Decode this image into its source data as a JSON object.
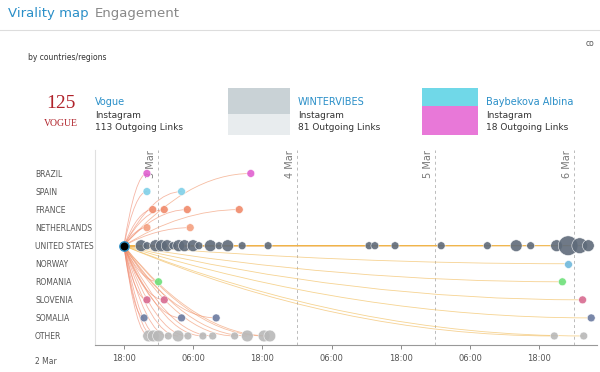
{
  "header": {
    "tabs": [
      "Virality map",
      "Engagement"
    ],
    "subtitle": "by countries/regions",
    "corner_text": "co"
  },
  "cards": [
    {
      "logo": [
        "125",
        "VOGUE"
      ],
      "title": "Vogue",
      "platform": "Instagram",
      "links": "113 Outgoing Links"
    },
    {
      "title": "WINTERVIBES",
      "platform": "Instagram",
      "links": "81 Outgoing Links"
    },
    {
      "title": "Baybekova Albina",
      "platform": "Instagram",
      "links": "18 Outgoing Links"
    }
  ],
  "chart_data": {
    "type": "scatter",
    "categories": [
      "BRAZIL",
      "SPAIN",
      "FRANCE",
      "NETHERLANDS",
      "UNITED STATES",
      "NORWAY",
      "ROMANIA",
      "SLOVENIA",
      "SOMALIA",
      "OTHER"
    ],
    "start_label": "2 Mar",
    "xlim": [
      13,
      100
    ],
    "xticks": [
      {
        "value": 18,
        "label": "18:00"
      },
      {
        "value": 30,
        "label": "06:00"
      },
      {
        "value": 42,
        "label": "18:00"
      },
      {
        "value": 54,
        "label": "06:00"
      },
      {
        "value": 66,
        "label": "18:00"
      },
      {
        "value": 78,
        "label": "06:00"
      },
      {
        "value": 90,
        "label": "18:00"
      }
    ],
    "day_lines": [
      {
        "value": 24,
        "label": "3 Mar"
      },
      {
        "value": 48,
        "label": "4 Mar"
      },
      {
        "value": 72,
        "label": "5 Mar"
      },
      {
        "value": 96,
        "label": "6 Mar"
      }
    ],
    "source": {
      "x": 18,
      "category": "UNITED STATES"
    },
    "series": [
      {
        "name": "BRAZIL",
        "color": "#e060d0",
        "x": [
          22,
          40
        ],
        "sizes": [
          2,
          2
        ]
      },
      {
        "name": "SPAIN",
        "color": "#7fd0e8",
        "x": [
          22,
          28
        ],
        "sizes": [
          2,
          2
        ]
      },
      {
        "name": "FRANCE",
        "color": "#f08a6a",
        "x": [
          23,
          25,
          29,
          38
        ],
        "sizes": [
          2,
          2,
          2,
          2
        ]
      },
      {
        "name": "NETHERLANDS",
        "color": "#f4a080",
        "x": [
          22,
          29.5
        ],
        "sizes": [
          2,
          2
        ]
      },
      {
        "name": "UNITED STATES",
        "color": "#5f6b7a",
        "x": [
          21,
          22,
          23.5,
          24.5,
          25.5,
          26.5,
          27.5,
          28.5,
          30,
          31,
          33,
          34.5,
          36,
          38.5,
          43,
          60.5,
          61.5,
          65,
          73,
          81,
          86,
          88.5,
          93,
          95,
          97,
          98.5
        ],
        "sizes": [
          3,
          2,
          3,
          3,
          3,
          2,
          3,
          3,
          3,
          2,
          3,
          2,
          3,
          2,
          2,
          2,
          2,
          2,
          2,
          2,
          3,
          2,
          3,
          5,
          4,
          3
        ]
      },
      {
        "name": "NORWAY",
        "color": "#6fb8dc",
        "x": [
          95
        ],
        "sizes": [
          2
        ]
      },
      {
        "name": "ROMANIA",
        "color": "#6ee07a",
        "x": [
          24,
          94
        ],
        "sizes": [
          2,
          2
        ]
      },
      {
        "name": "SLOVENIA",
        "color": "#d86a90",
        "x": [
          22,
          25,
          97.5
        ],
        "sizes": [
          2,
          2,
          2
        ]
      },
      {
        "name": "SOMALIA",
        "color": "#6a7aa0",
        "x": [
          21.5,
          28,
          34,
          99
        ],
        "sizes": [
          2,
          2,
          2,
          2
        ]
      },
      {
        "name": "OTHER",
        "color": "#b8b8b8",
        "x": [
          22.3,
          23.1,
          24,
          25.7,
          27.4,
          29.1,
          31.7,
          33.4,
          37.2,
          39.4,
          42.3,
          43.3,
          92.6,
          97.7
        ],
        "sizes": [
          3,
          3,
          3,
          2,
          3,
          2,
          2,
          2,
          2,
          3,
          3,
          3,
          2,
          2
        ]
      }
    ]
  }
}
